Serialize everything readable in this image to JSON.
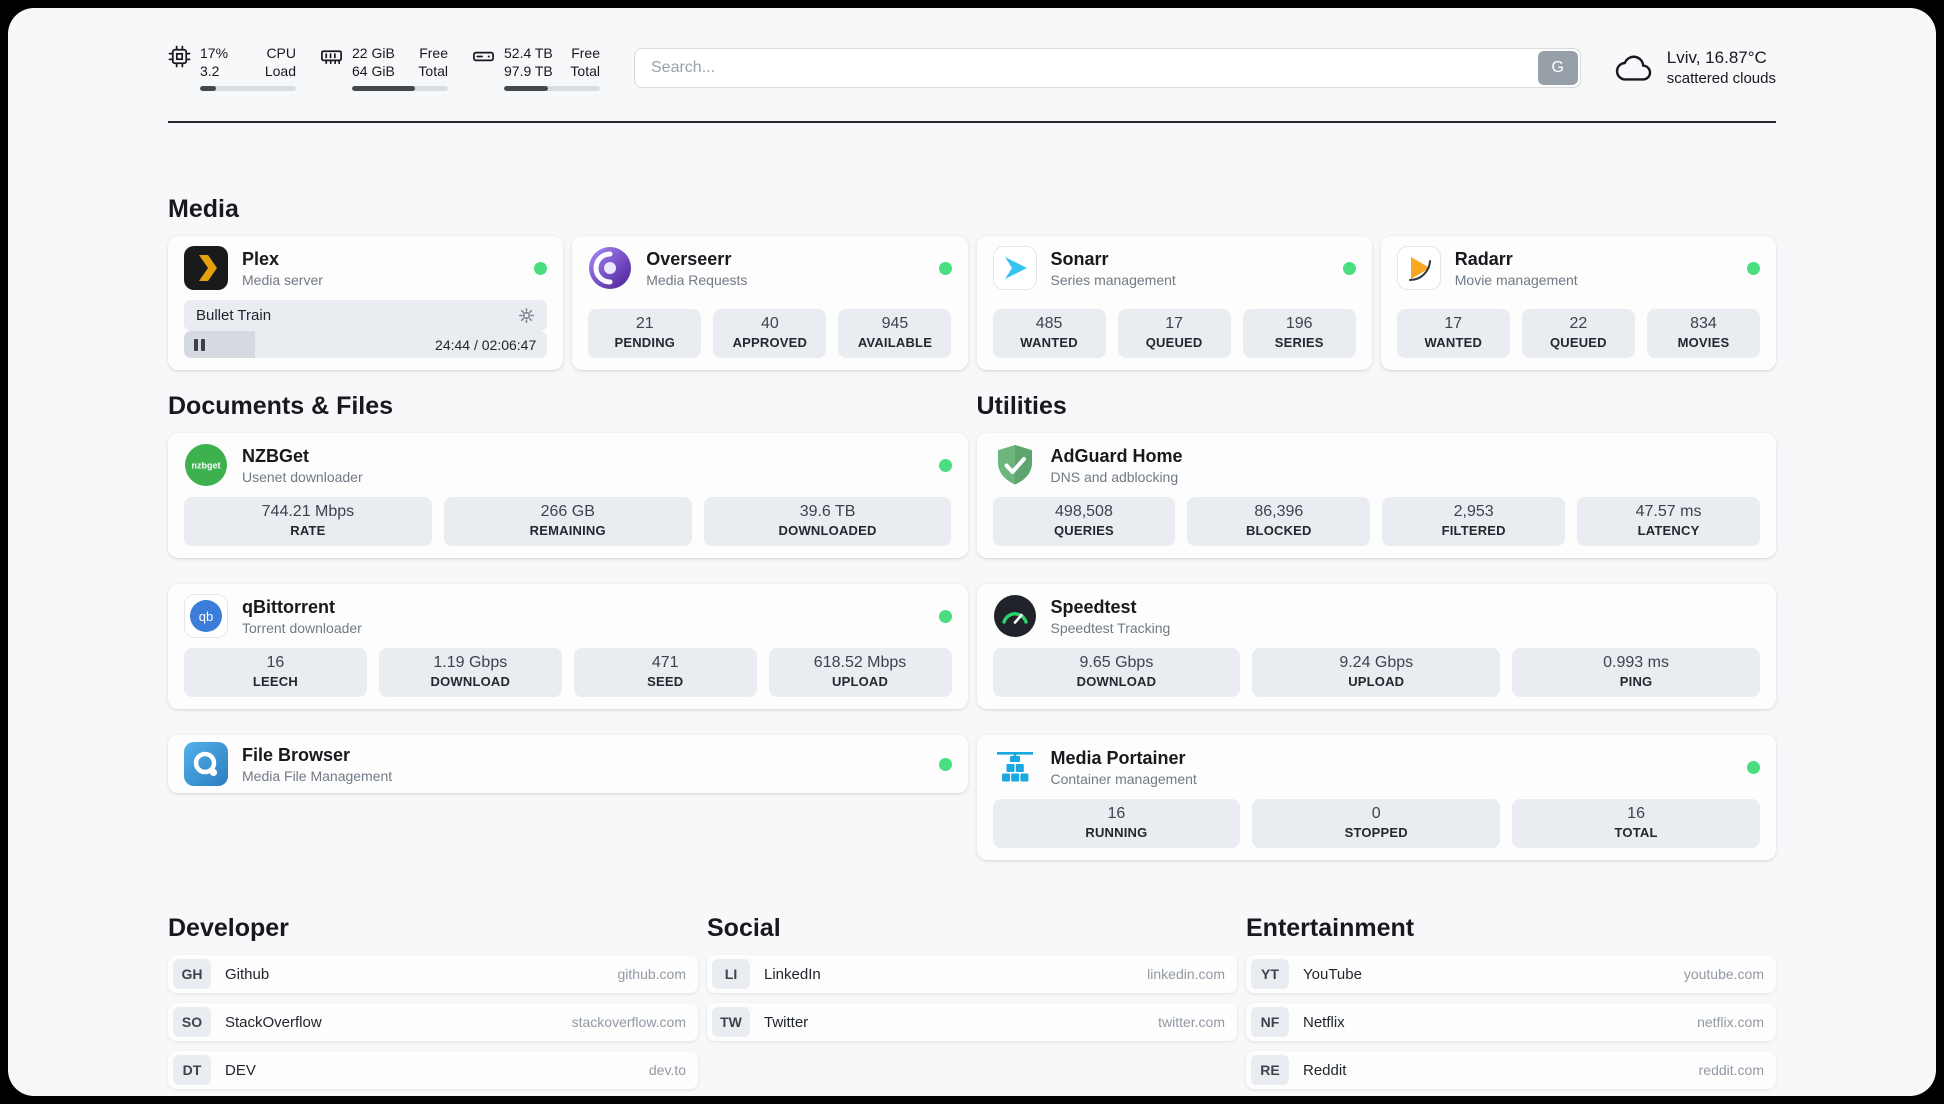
{
  "topbar": {
    "cpu": {
      "percent": "17%",
      "load": "3.2",
      "label1": "CPU",
      "label2": "Load",
      "bar": 17
    },
    "memory": {
      "free": "22 GiB",
      "total": "64 GiB",
      "label1": "Free",
      "label2": "Total",
      "bar": 66
    },
    "disk": {
      "free": "52.4 TB",
      "total": "97.9 TB",
      "label1": "Free",
      "label2": "Total",
      "bar": 46
    },
    "search": {
      "placeholder": "Search...",
      "button": "G"
    },
    "weather": {
      "location": "Lviv, 16.87°C",
      "condition": "scattered clouds"
    }
  },
  "sections": {
    "media": {
      "title": "Media"
    },
    "documents": {
      "title": "Documents & Files"
    },
    "utilities": {
      "title": "Utilities"
    }
  },
  "apps": {
    "plex": {
      "name": "Plex",
      "subtitle": "Media server",
      "online": true,
      "now_playing": "Bullet Train",
      "time": "24:44 / 02:06:47",
      "progress": 19.5
    },
    "overseerr": {
      "name": "Overseerr",
      "subtitle": "Media Requests",
      "online": true,
      "stats": [
        {
          "value": "21",
          "label": "PENDING"
        },
        {
          "value": "40",
          "label": "APPROVED"
        },
        {
          "value": "945",
          "label": "AVAILABLE"
        }
      ]
    },
    "sonarr": {
      "name": "Sonarr",
      "subtitle": "Series management",
      "online": true,
      "stats": [
        {
          "value": "485",
          "label": "WANTED"
        },
        {
          "value": "17",
          "label": "QUEUED"
        },
        {
          "value": "196",
          "label": "SERIES"
        }
      ]
    },
    "radarr": {
      "name": "Radarr",
      "subtitle": "Movie management",
      "online": true,
      "stats": [
        {
          "value": "17",
          "label": "WANTED"
        },
        {
          "value": "22",
          "label": "QUEUED"
        },
        {
          "value": "834",
          "label": "MOVIES"
        }
      ]
    },
    "nzbget": {
      "name": "NZBGet",
      "subtitle": "Usenet downloader",
      "online": true,
      "stats": [
        {
          "value": "744.21 Mbps",
          "label": "RATE"
        },
        {
          "value": "266 GB",
          "label": "REMAINING"
        },
        {
          "value": "39.6 TB",
          "label": "DOWNLOADED"
        }
      ]
    },
    "qbittorrent": {
      "name": "qBittorrent",
      "subtitle": "Torrent downloader",
      "online": true,
      "stats": [
        {
          "value": "16",
          "label": "LEECH"
        },
        {
          "value": "1.19 Gbps",
          "label": "DOWNLOAD"
        },
        {
          "value": "471",
          "label": "SEED"
        },
        {
          "value": "618.52 Mbps",
          "label": "UPLOAD"
        }
      ]
    },
    "filebrowser": {
      "name": "File Browser",
      "subtitle": "Media File Management",
      "online": true
    },
    "adguard": {
      "name": "AdGuard Home",
      "subtitle": "DNS and adblocking",
      "online": false,
      "stats": [
        {
          "value": "498,508",
          "label": "QUERIES"
        },
        {
          "value": "86,396",
          "label": "BLOCKED"
        },
        {
          "value": "2,953",
          "label": "FILTERED"
        },
        {
          "value": "47.57 ms",
          "label": "LATENCY"
        }
      ]
    },
    "speedtest": {
      "name": "Speedtest",
      "subtitle": "Speedtest Tracking",
      "online": false,
      "stats": [
        {
          "value": "9.65 Gbps",
          "label": "DOWNLOAD"
        },
        {
          "value": "9.24 Gbps",
          "label": "UPLOAD"
        },
        {
          "value": "0.993 ms",
          "label": "PING"
        }
      ]
    },
    "portainer": {
      "name": "Media Portainer",
      "subtitle": "Container management",
      "online": true,
      "stats": [
        {
          "value": "16",
          "label": "RUNNING"
        },
        {
          "value": "0",
          "label": "STOPPED"
        },
        {
          "value": "16",
          "label": "TOTAL"
        }
      ]
    }
  },
  "icon_texts": {
    "nzbget": "nzbget",
    "qbittorrent": "qb"
  },
  "bookmarks": {
    "developer": {
      "title": "Developer",
      "items": [
        {
          "abbr": "GH",
          "name": "Github",
          "url": "github.com"
        },
        {
          "abbr": "SO",
          "name": "StackOverflow",
          "url": "stackoverflow.com"
        },
        {
          "abbr": "DT",
          "name": "DEV",
          "url": "dev.to"
        }
      ]
    },
    "social": {
      "title": "Social",
      "items": [
        {
          "abbr": "LI",
          "name": "LinkedIn",
          "url": "linkedin.com"
        },
        {
          "abbr": "TW",
          "name": "Twitter",
          "url": "twitter.com"
        }
      ]
    },
    "entertainment": {
      "title": "Entertainment",
      "items": [
        {
          "abbr": "YT",
          "name": "YouTube",
          "url": "youtube.com"
        },
        {
          "abbr": "NF",
          "name": "Netflix",
          "url": "netflix.com"
        },
        {
          "abbr": "RE",
          "name": "Reddit",
          "url": "reddit.com"
        }
      ]
    }
  },
  "colors": {
    "online_dot": "#4ade80",
    "progress_fill": "#43484d",
    "stat_background": "#e9edf2",
    "page_background": "#f7f8fa",
    "divider": "#26282c"
  }
}
